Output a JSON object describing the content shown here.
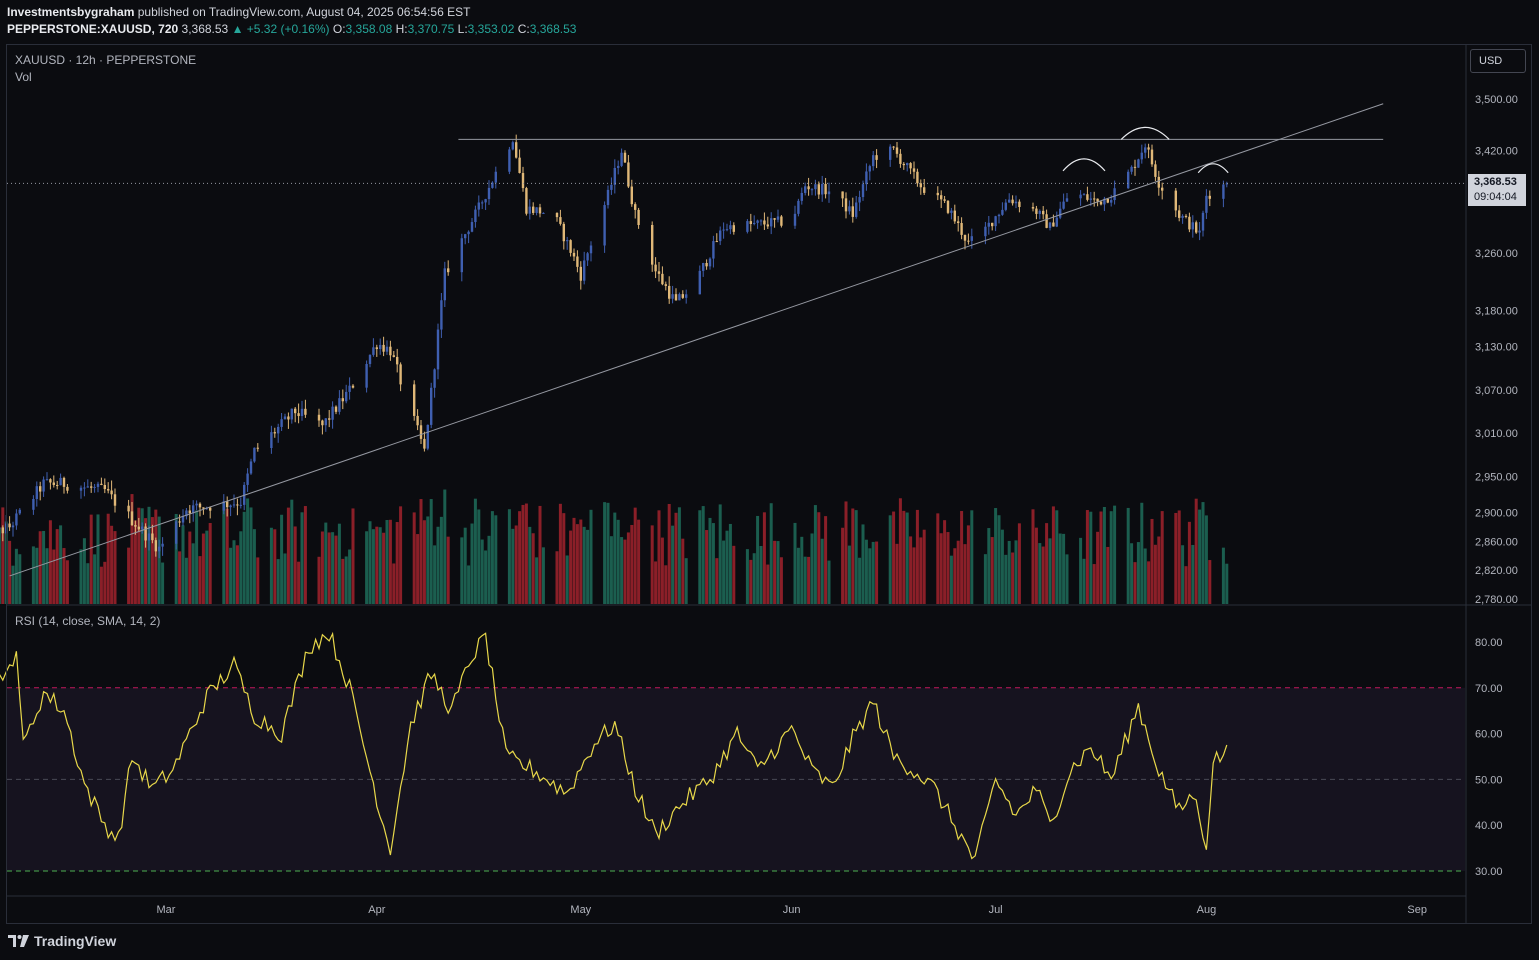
{
  "header": {
    "author": "Investmentsbygraham",
    "published_text": "published on TradingView.com, August 04, 2025 06:54:56 EST",
    "symbol_full": "PEPPERSTONE:XAUUSD, 720",
    "last": "3,368.53",
    "change": "▲ +5.32 (+0.16%)",
    "o_label": "O:",
    "o_val": "3,358.08",
    "h_label": "H:",
    "h_val": "3,370.75",
    "l_label": "L:",
    "l_val": "3,353.02",
    "c_label": "C:",
    "c_val": "3,368.53"
  },
  "pane_legend": {
    "title": "XAUUSD · 12h · PEPPERSTONE",
    "vol": "Vol",
    "rsi": "RSI (14, close, SMA, 14, 2)"
  },
  "currency_button": "USD",
  "price_tag": {
    "price": "3,368.53",
    "countdown": "09:04:04"
  },
  "brand": {
    "name": "TradingView"
  },
  "colors": {
    "background": "#0b0c10",
    "candle_up": "#3f5fb0",
    "candle_down": "#e0b878",
    "vol_up": "#1b5e4f",
    "vol_down": "#8b1f28",
    "rsi_line": "#e8d84a",
    "rsi_band": "#16131f",
    "rsi_upper": "#c2185b",
    "rsi_lower": "#4caf50"
  },
  "chart_data": [
    {
      "type": "candlestick",
      "title": "XAUUSD · 12h · PEPPERSTONE",
      "y_axis_ticks": [
        "3,500.00",
        "3,420.00",
        "3,260.00",
        "3,180.00",
        "3,130.00",
        "3,070.00",
        "3,010.00",
        "2,950.00",
        "2,900.00",
        "2,860.00",
        "2,820.00",
        "2,780.00"
      ],
      "x_axis_ticks": [
        "Mar",
        "Apr",
        "May",
        "Jun",
        "Jul",
        "Aug",
        "Sep"
      ],
      "anchors": [
        [
          "2025-02-01",
          2860
        ],
        [
          "2025-02-06",
          2880
        ],
        [
          "2025-02-11",
          2940
        ],
        [
          "2025-02-14",
          2940
        ],
        [
          "2025-02-20",
          2930
        ],
        [
          "2025-02-25",
          2880
        ],
        [
          "2025-02-28",
          2850
        ],
        [
          "2025-03-04",
          2905
        ],
        [
          "2025-03-08",
          2910
        ],
        [
          "2025-03-12",
          2915
        ],
        [
          "2025-03-14",
          2985
        ],
        [
          "2025-03-20",
          3040
        ],
        [
          "2025-03-24",
          3020
        ],
        [
          "2025-03-28",
          3070
        ],
        [
          "2025-04-01",
          3135
        ],
        [
          "2025-04-03",
          3125
        ],
        [
          "2025-04-06",
          3040
        ],
        [
          "2025-04-08",
          2985
        ],
        [
          "2025-04-11",
          3230
        ],
        [
          "2025-04-16",
          3330
        ],
        [
          "2025-04-21",
          3440
        ],
        [
          "2025-04-23",
          3330
        ],
        [
          "2025-04-27",
          3320
        ],
        [
          "2025-05-01",
          3230
        ],
        [
          "2025-05-05",
          3350
        ],
        [
          "2025-05-07",
          3420
        ],
        [
          "2025-05-09",
          3320
        ],
        [
          "2025-05-12",
          3235
        ],
        [
          "2025-05-15",
          3190
        ],
        [
          "2025-05-18",
          3220
        ],
        [
          "2025-05-22",
          3300
        ],
        [
          "2025-05-27",
          3305
        ],
        [
          "2025-06-01",
          3310
        ],
        [
          "2025-06-03",
          3365
        ],
        [
          "2025-06-07",
          3355
        ],
        [
          "2025-06-10",
          3320
        ],
        [
          "2025-06-13",
          3410
        ],
        [
          "2025-06-16",
          3420
        ],
        [
          "2025-06-20",
          3365
        ],
        [
          "2025-06-24",
          3330
        ],
        [
          "2025-06-27",
          3275
        ],
        [
          "2025-06-29",
          3290
        ],
        [
          "2025-07-03",
          3345
        ],
        [
          "2025-07-07",
          3325
        ],
        [
          "2025-07-09",
          3300
        ],
        [
          "2025-07-12",
          3355
        ],
        [
          "2025-07-16",
          3340
        ],
        [
          "2025-07-18",
          3350
        ],
        [
          "2025-07-21",
          3390
        ],
        [
          "2025-07-23",
          3430
        ],
        [
          "2025-07-25",
          3370
        ],
        [
          "2025-07-28",
          3320
        ],
        [
          "2025-07-31",
          3290
        ],
        [
          "2025-08-01",
          3350
        ],
        [
          "2025-08-04",
          3368.53
        ]
      ],
      "last_price": 3368.53,
      "resistance_level": 3437,
      "trendline": [
        [
          "2025-02-06",
          2812
        ],
        [
          "2025-08-09",
          3432
        ]
      ],
      "annotations": [
        "arc near 2025-07-14",
        "arc near 2025-07-22",
        "arc near 2025-08-02"
      ]
    },
    {
      "type": "bar",
      "title": "Vol",
      "series": [
        {
          "name": "Volume",
          "note": "green on up candles, red on down candles"
        }
      ]
    },
    {
      "type": "line",
      "title": "RSI (14, close, SMA, 14, 2)",
      "y_axis_ticks": [
        "80.00",
        "70.00",
        "60.00",
        "50.00",
        "40.00",
        "30.00"
      ],
      "ylim": [
        27,
        86
      ],
      "levels": [
        70,
        50,
        30
      ],
      "anchors": [
        [
          "2025-02-01",
          78
        ],
        [
          "2025-02-03",
          80
        ],
        [
          "2025-02-05",
          70
        ],
        [
          "2025-02-07",
          79
        ],
        [
          "2025-02-08",
          57
        ],
        [
          "2025-02-11",
          69
        ],
        [
          "2025-02-14",
          65
        ],
        [
          "2025-02-17",
          49
        ],
        [
          "2025-02-20",
          40
        ],
        [
          "2025-02-22",
          37
        ],
        [
          "2025-02-24",
          55
        ],
        [
          "2025-02-27",
          48
        ],
        [
          "2025-03-02",
          52
        ],
        [
          "2025-03-07",
          68
        ],
        [
          "2025-03-11",
          75
        ],
        [
          "2025-03-14",
          64
        ],
        [
          "2025-03-18",
          60
        ],
        [
          "2025-03-22",
          79
        ],
        [
          "2025-03-25",
          82
        ],
        [
          "2025-03-28",
          70
        ],
        [
          "2025-04-02",
          40
        ],
        [
          "2025-04-03",
          35
        ],
        [
          "2025-04-06",
          62
        ],
        [
          "2025-04-09",
          73
        ],
        [
          "2025-04-12",
          65
        ],
        [
          "2025-04-15",
          77
        ],
        [
          "2025-04-17",
          81
        ],
        [
          "2025-04-20",
          55
        ],
        [
          "2025-04-24",
          52
        ],
        [
          "2025-04-29",
          47
        ],
        [
          "2025-05-03",
          58
        ],
        [
          "2025-05-06",
          62
        ],
        [
          "2025-05-09",
          48
        ],
        [
          "2025-05-12",
          38
        ],
        [
          "2025-05-16",
          45
        ],
        [
          "2025-05-20",
          50
        ],
        [
          "2025-05-24",
          60
        ],
        [
          "2025-05-27",
          52
        ],
        [
          "2025-06-01",
          61
        ],
        [
          "2025-06-04",
          52
        ],
        [
          "2025-06-07",
          48
        ],
        [
          "2025-06-10",
          59
        ],
        [
          "2025-06-13",
          67
        ],
        [
          "2025-06-16",
          55
        ],
        [
          "2025-06-19",
          52
        ],
        [
          "2025-06-22",
          48
        ],
        [
          "2025-06-25",
          40
        ],
        [
          "2025-06-28",
          32
        ],
        [
          "2025-07-01",
          50
        ],
        [
          "2025-07-04",
          42
        ],
        [
          "2025-07-07",
          48
        ],
        [
          "2025-07-09",
          40
        ],
        [
          "2025-07-12",
          52
        ],
        [
          "2025-07-15",
          57
        ],
        [
          "2025-07-18",
          50
        ],
        [
          "2025-07-22",
          66
        ],
        [
          "2025-07-25",
          52
        ],
        [
          "2025-07-28",
          43
        ],
        [
          "2025-07-30",
          47
        ],
        [
          "2025-08-01",
          36
        ],
        [
          "2025-08-02",
          54
        ],
        [
          "2025-08-04",
          56
        ]
      ]
    }
  ]
}
